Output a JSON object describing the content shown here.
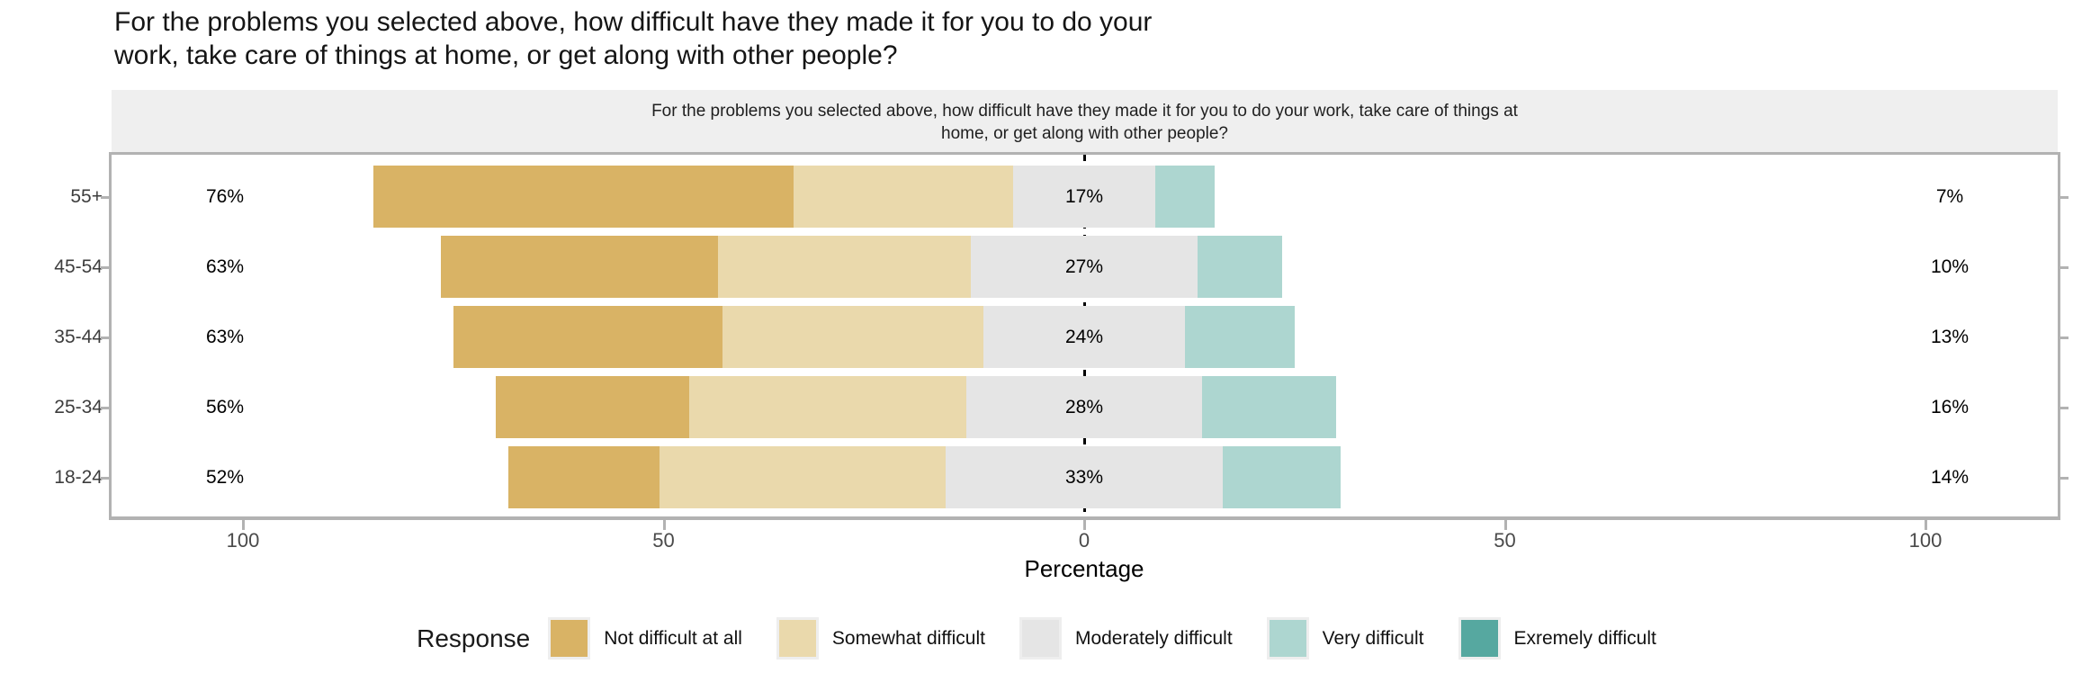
{
  "title": "For the problems you selected above, how difficult have they made it for you to do your\nwork, take care of things at home, or get along with other people?",
  "facet": {
    "strip_text": "For the problems you selected above, how difficult have they made it for you to do your work, take care of things at\nhome, or get along with other people?"
  },
  "chart_data": {
    "type": "bar",
    "subtype": "diverging-stacked-likert",
    "orientation": "horizontal",
    "title": "For the problems you selected above, how difficult have they made it for you to do your work, take care of things at home, or get along with other people?",
    "xlabel": "Percentage",
    "ylabel": "",
    "xlim": [
      -115,
      115
    ],
    "grid": "off",
    "legend_position": "bottom",
    "legend_title": "Response",
    "categories": [
      "55+",
      "45-54",
      "35-44",
      "25-34",
      "18-24"
    ],
    "x_ticks": [
      {
        "label": "100",
        "value": -100
      },
      {
        "label": "50",
        "value": -50
      },
      {
        "label": "0",
        "value": 0
      },
      {
        "label": "50",
        "value": 50
      },
      {
        "label": "100",
        "value": 100
      }
    ],
    "series": [
      {
        "name": "Not difficult at all",
        "color": "#d9b365",
        "values": [
          50,
          33,
          32,
          23,
          18
        ]
      },
      {
        "name": "Somewhat difficult",
        "color": "#ead9ac",
        "values": [
          26,
          30,
          31,
          33,
          34
        ]
      },
      {
        "name": "Moderately difficult",
        "color": "#e5e5e5",
        "values": [
          17,
          27,
          24,
          28,
          33
        ]
      },
      {
        "name": "Very difficult",
        "color": "#add6d0",
        "values": [
          7,
          10,
          13,
          16,
          14
        ]
      },
      {
        "name": "Exremely difficult",
        "color": "#56a8a0",
        "values": [
          0,
          0,
          0,
          0,
          0
        ]
      }
    ],
    "row_labels": {
      "left": [
        "76%",
        "63%",
        "63%",
        "56%",
        "52%"
      ],
      "center": [
        "17%",
        "27%",
        "24%",
        "28%",
        "33%"
      ],
      "right": [
        "7%",
        "10%",
        "13%",
        "16%",
        "14%"
      ]
    },
    "note": "Left label = Not difficult at all + Somewhat difficult; center label = Moderately difficult (bar centered on 0); right label = Very difficult + Exremely difficult"
  }
}
